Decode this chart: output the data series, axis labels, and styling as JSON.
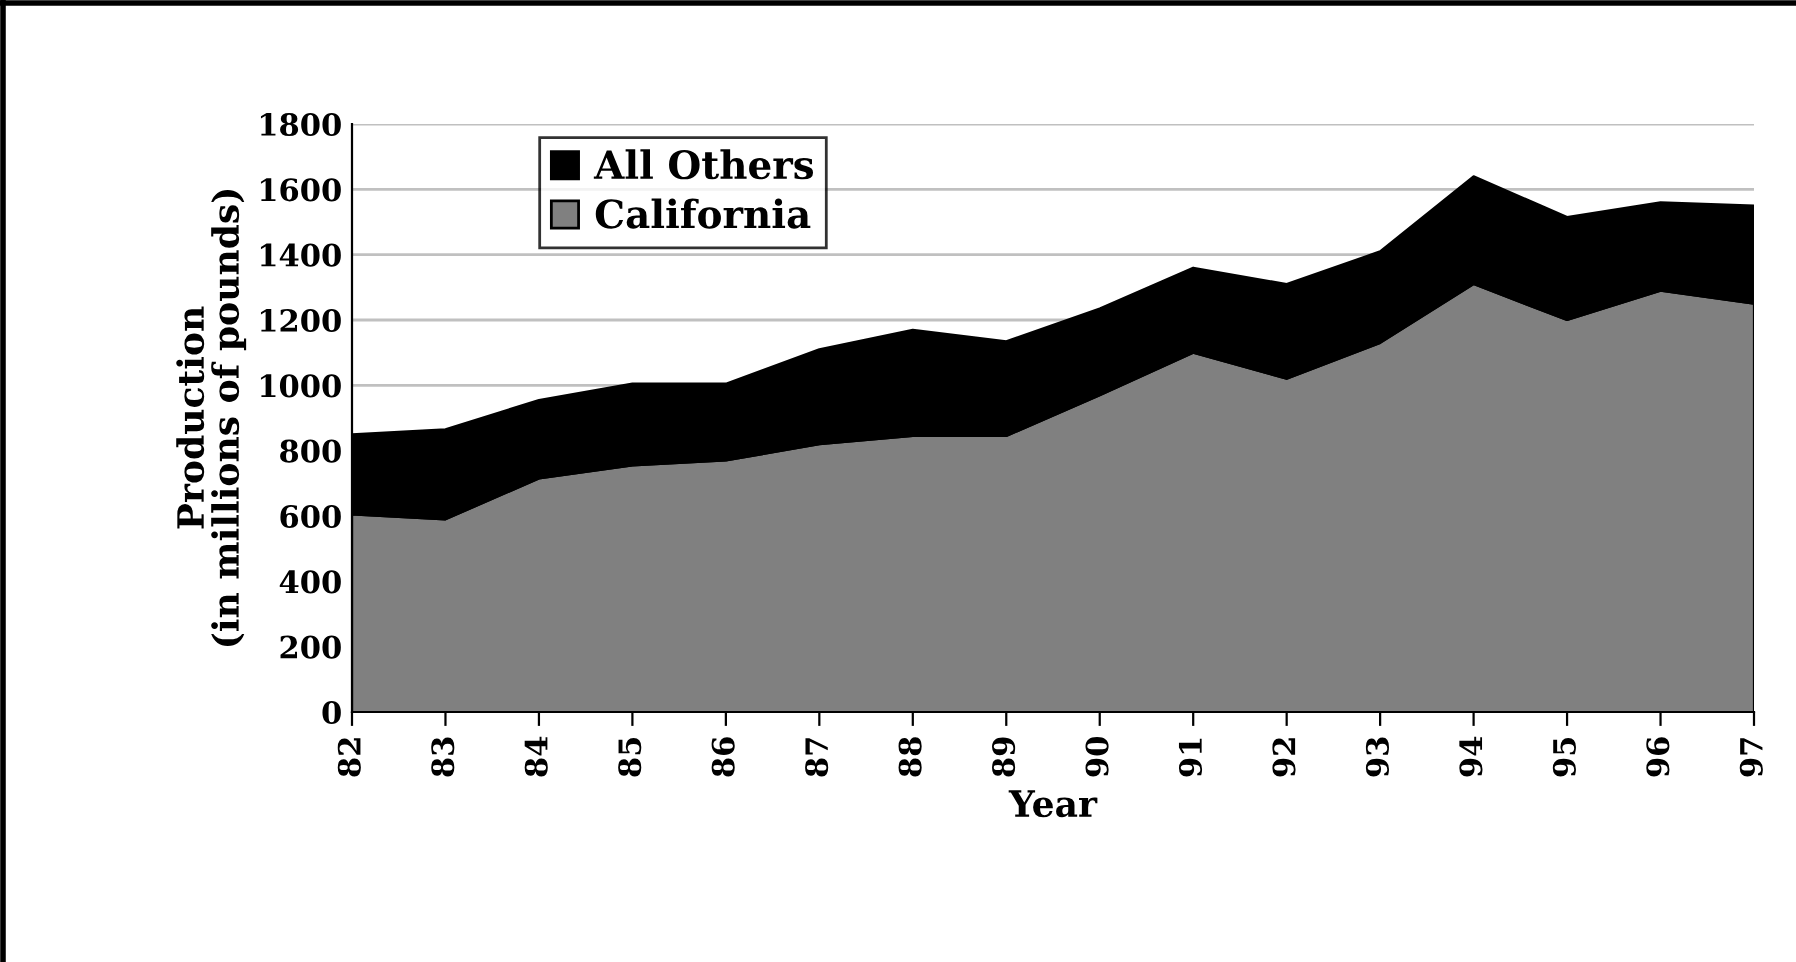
{
  "chart_data": {
    "type": "area",
    "stacked": true,
    "xlabel": "Year",
    "ylabel": "Production\n(in millions of pounds)",
    "categories": [
      "82",
      "83",
      "84",
      "85",
      "86",
      "87",
      "88",
      "89",
      "90",
      "91",
      "92",
      "93",
      "94",
      "95",
      "96",
      "97"
    ],
    "series": [
      {
        "name": "California",
        "color": "#808080",
        "values": [
          605,
          590,
          715,
          755,
          770,
          820,
          845,
          845,
          970,
          1100,
          1020,
          1130,
          1310,
          1200,
          1290,
          1250
        ]
      },
      {
        "name": "All Others",
        "color": "#000000",
        "values": [
          245,
          275,
          240,
          250,
          235,
          290,
          325,
          290,
          265,
          260,
          290,
          280,
          330,
          315,
          270,
          300
        ]
      }
    ],
    "ylim": [
      0,
      1800
    ],
    "yticks": [
      0,
      200,
      400,
      600,
      800,
      1000,
      1200,
      1400,
      1600,
      1800
    ],
    "grid": "y",
    "legend": "top left"
  }
}
